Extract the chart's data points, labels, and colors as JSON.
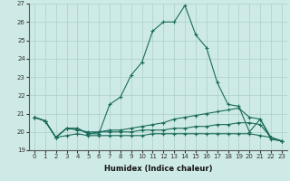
{
  "xlabel": "Humidex (Indice chaleur)",
  "background_color": "#ceeae6",
  "grid_color": "#aacfca",
  "line_color": "#1a6b5a",
  "x_values": [
    0,
    1,
    2,
    3,
    4,
    5,
    6,
    7,
    8,
    9,
    10,
    11,
    12,
    13,
    14,
    15,
    16,
    17,
    18,
    19,
    20,
    21,
    22,
    23
  ],
  "series": [
    [
      20.8,
      20.6,
      19.7,
      20.2,
      20.2,
      19.9,
      19.9,
      21.5,
      21.9,
      23.1,
      23.8,
      25.5,
      26.0,
      26.0,
      26.9,
      25.3,
      24.6,
      22.7,
      21.5,
      21.4,
      20.0,
      20.7,
      19.6,
      19.5
    ],
    [
      20.8,
      20.6,
      19.7,
      20.2,
      20.2,
      19.9,
      20.0,
      20.1,
      20.1,
      20.2,
      20.3,
      20.4,
      20.5,
      20.7,
      20.8,
      20.9,
      21.0,
      21.1,
      21.2,
      21.3,
      20.8,
      20.7,
      19.7,
      19.5
    ],
    [
      20.8,
      20.6,
      19.7,
      20.2,
      20.1,
      20.0,
      20.0,
      20.0,
      20.0,
      20.0,
      20.1,
      20.1,
      20.1,
      20.2,
      20.2,
      20.3,
      20.3,
      20.4,
      20.4,
      20.5,
      20.5,
      20.4,
      19.7,
      19.5
    ],
    [
      20.8,
      20.6,
      19.7,
      19.8,
      19.9,
      19.8,
      19.8,
      19.8,
      19.8,
      19.8,
      19.8,
      19.9,
      19.9,
      19.9,
      19.9,
      19.9,
      19.9,
      19.9,
      19.9,
      19.9,
      19.9,
      19.8,
      19.7,
      19.5
    ]
  ],
  "ylim": [
    19,
    27
  ],
  "yticks": [
    19,
    20,
    21,
    22,
    23,
    24,
    25,
    26,
    27
  ],
  "xticks": [
    0,
    1,
    2,
    3,
    4,
    5,
    6,
    7,
    8,
    9,
    10,
    11,
    12,
    13,
    14,
    15,
    16,
    17,
    18,
    19,
    20,
    21,
    22,
    23
  ],
  "marker": "+",
  "markersize": 3,
  "linewidth": 0.8,
  "tick_fontsize": 5,
  "xlabel_fontsize": 6
}
